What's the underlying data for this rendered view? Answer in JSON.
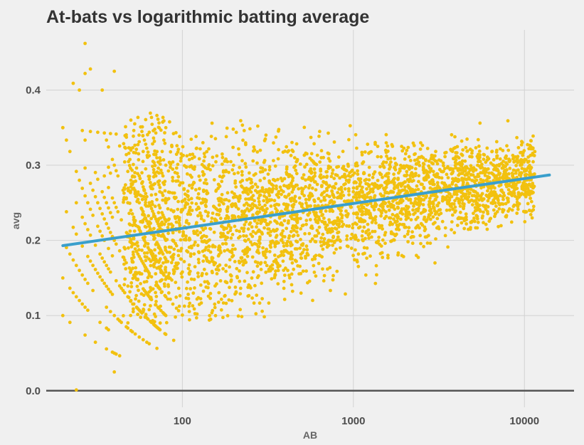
{
  "chart_data": {
    "type": "scatter",
    "title": "At-bats vs logarithmic batting average",
    "xlabel": "AB",
    "ylabel": "avg",
    "x_scale": "log10",
    "xlim": [
      16,
      19500
    ],
    "ylim": [
      -0.022,
      0.48
    ],
    "x_ticks": [
      100,
      1000,
      10000
    ],
    "x_tick_labels": [
      "100",
      "1000",
      "10000"
    ],
    "y_ticks": [
      0.0,
      0.1,
      0.2,
      0.3,
      0.4
    ],
    "y_tick_labels": [
      "0.0",
      "0.1",
      "0.2",
      "0.3",
      "0.4"
    ],
    "grid": true,
    "colors": {
      "points": "#f2c10f",
      "trend": "#3a9fcc",
      "zero_line": "#555555",
      "grid": "#d2d2d2",
      "background": "#f0f0f0"
    },
    "trend_line": {
      "x": [
        20,
        14000
      ],
      "y": [
        0.193,
        0.287
      ]
    },
    "highlight_points": [
      {
        "x": 27,
        "y": 0.462
      },
      {
        "x": 29,
        "y": 0.428
      },
      {
        "x": 27,
        "y": 0.422
      },
      {
        "x": 40,
        "y": 0.425
      },
      {
        "x": 23,
        "y": 0.409
      },
      {
        "x": 34,
        "y": 0.4
      },
      {
        "x": 25,
        "y": 0.4
      },
      {
        "x": 20,
        "y": 0.35
      },
      {
        "x": 276,
        "y": 0.352
      },
      {
        "x": 8000,
        "y": 0.359
      },
      {
        "x": 5500,
        "y": 0.356
      },
      {
        "x": 3000,
        "y": 0.17
      },
      {
        "x": 89,
        "y": 0.067
      },
      {
        "x": 40,
        "y": 0.025
      },
      {
        "x": 24,
        "y": 0.001
      },
      {
        "x": 121,
        "y": 0.097
      },
      {
        "x": 59,
        "y": 0.105
      },
      {
        "x": 65,
        "y": 0.113
      }
    ]
  }
}
